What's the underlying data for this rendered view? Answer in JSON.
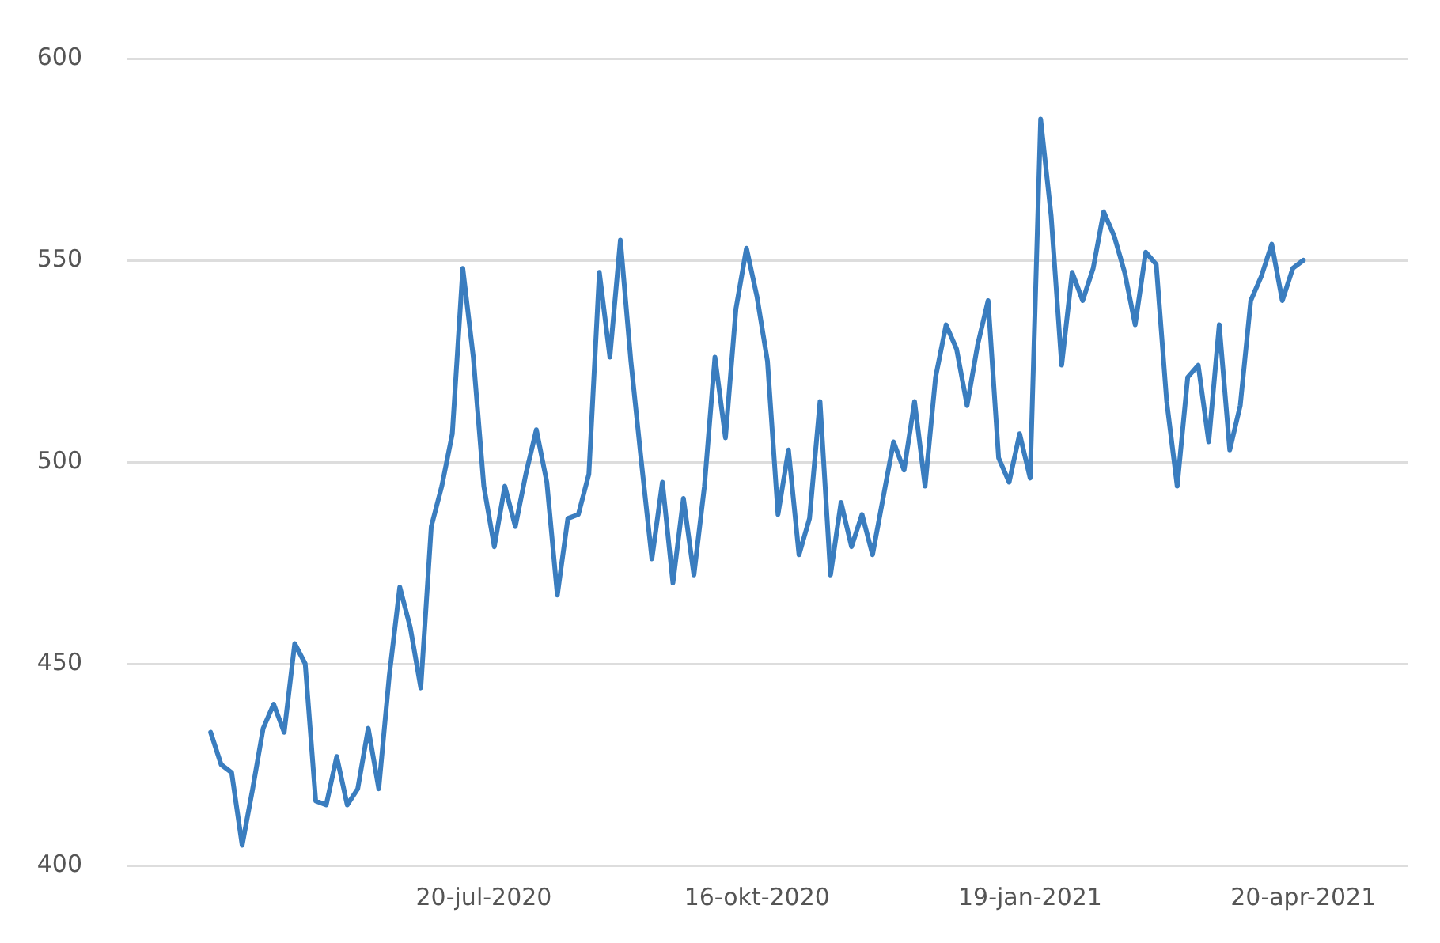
{
  "chart_data": {
    "type": "line",
    "grid": "y",
    "marker": "none",
    "line_style": "solid",
    "ylim": [
      400,
      600
    ],
    "yticks": [
      400,
      450,
      500,
      550,
      600
    ],
    "categories": [
      null,
      null,
      null,
      null,
      null,
      null,
      null,
      null,
      null,
      null,
      null,
      null,
      null,
      null,
      null,
      null,
      null,
      null,
      null,
      null,
      null,
      null,
      null,
      null,
      null,
      null,
      null,
      null,
      null,
      null,
      null,
      null,
      null,
      null,
      "20-jul-2020",
      null,
      null,
      null,
      null,
      null,
      null,
      null,
      null,
      null,
      null,
      null,
      null,
      null,
      null,
      null,
      null,
      null,
      null,
      null,
      null,
      null,
      null,
      null,
      null,
      null,
      "16-okt-2020",
      null,
      null,
      null,
      null,
      null,
      null,
      null,
      null,
      null,
      null,
      null,
      null,
      null,
      null,
      null,
      null,
      null,
      null,
      null,
      null,
      null,
      null,
      null,
      null,
      null,
      "19-jan-2021",
      null,
      null,
      null,
      null,
      null,
      null,
      null,
      null,
      null,
      null,
      null,
      null,
      null,
      null,
      null,
      null,
      null,
      null,
      null,
      null,
      null,
      null,
      null,
      null,
      null,
      "20-apr-2021",
      null,
      null,
      null,
      null,
      null,
      null,
      null,
      null,
      null,
      null
    ],
    "series": [
      {
        "color": "#3a7dbf",
        "values": [
          null,
          null,
          null,
          null,
          null,
          null,
          null,
          null,
          433,
          425,
          423,
          405,
          419,
          434,
          440,
          433,
          455,
          450,
          416,
          415,
          427,
          415,
          419,
          434,
          419,
          447,
          469,
          459,
          444,
          484,
          494,
          507,
          548,
          526,
          494,
          479,
          494,
          484,
          497,
          508,
          495,
          467,
          486,
          487,
          497,
          547,
          526,
          555,
          525,
          500,
          476,
          495,
          470,
          491,
          472,
          494,
          526,
          506,
          538,
          553,
          541,
          525,
          487,
          503,
          477,
          486,
          515,
          472,
          490,
          479,
          487,
          477,
          491,
          505,
          498,
          515,
          494,
          521,
          534,
          528,
          514,
          529,
          540,
          501,
          495,
          507,
          496,
          585,
          561,
          524,
          547,
          540,
          548,
          562,
          556,
          547,
          534,
          552,
          549,
          515,
          494,
          521,
          524,
          505,
          534,
          503,
          514,
          540,
          546,
          554,
          540,
          548,
          550,
          null,
          null,
          null,
          null,
          null,
          null,
          null,
          null,
          null,
          null
        ]
      }
    ]
  }
}
